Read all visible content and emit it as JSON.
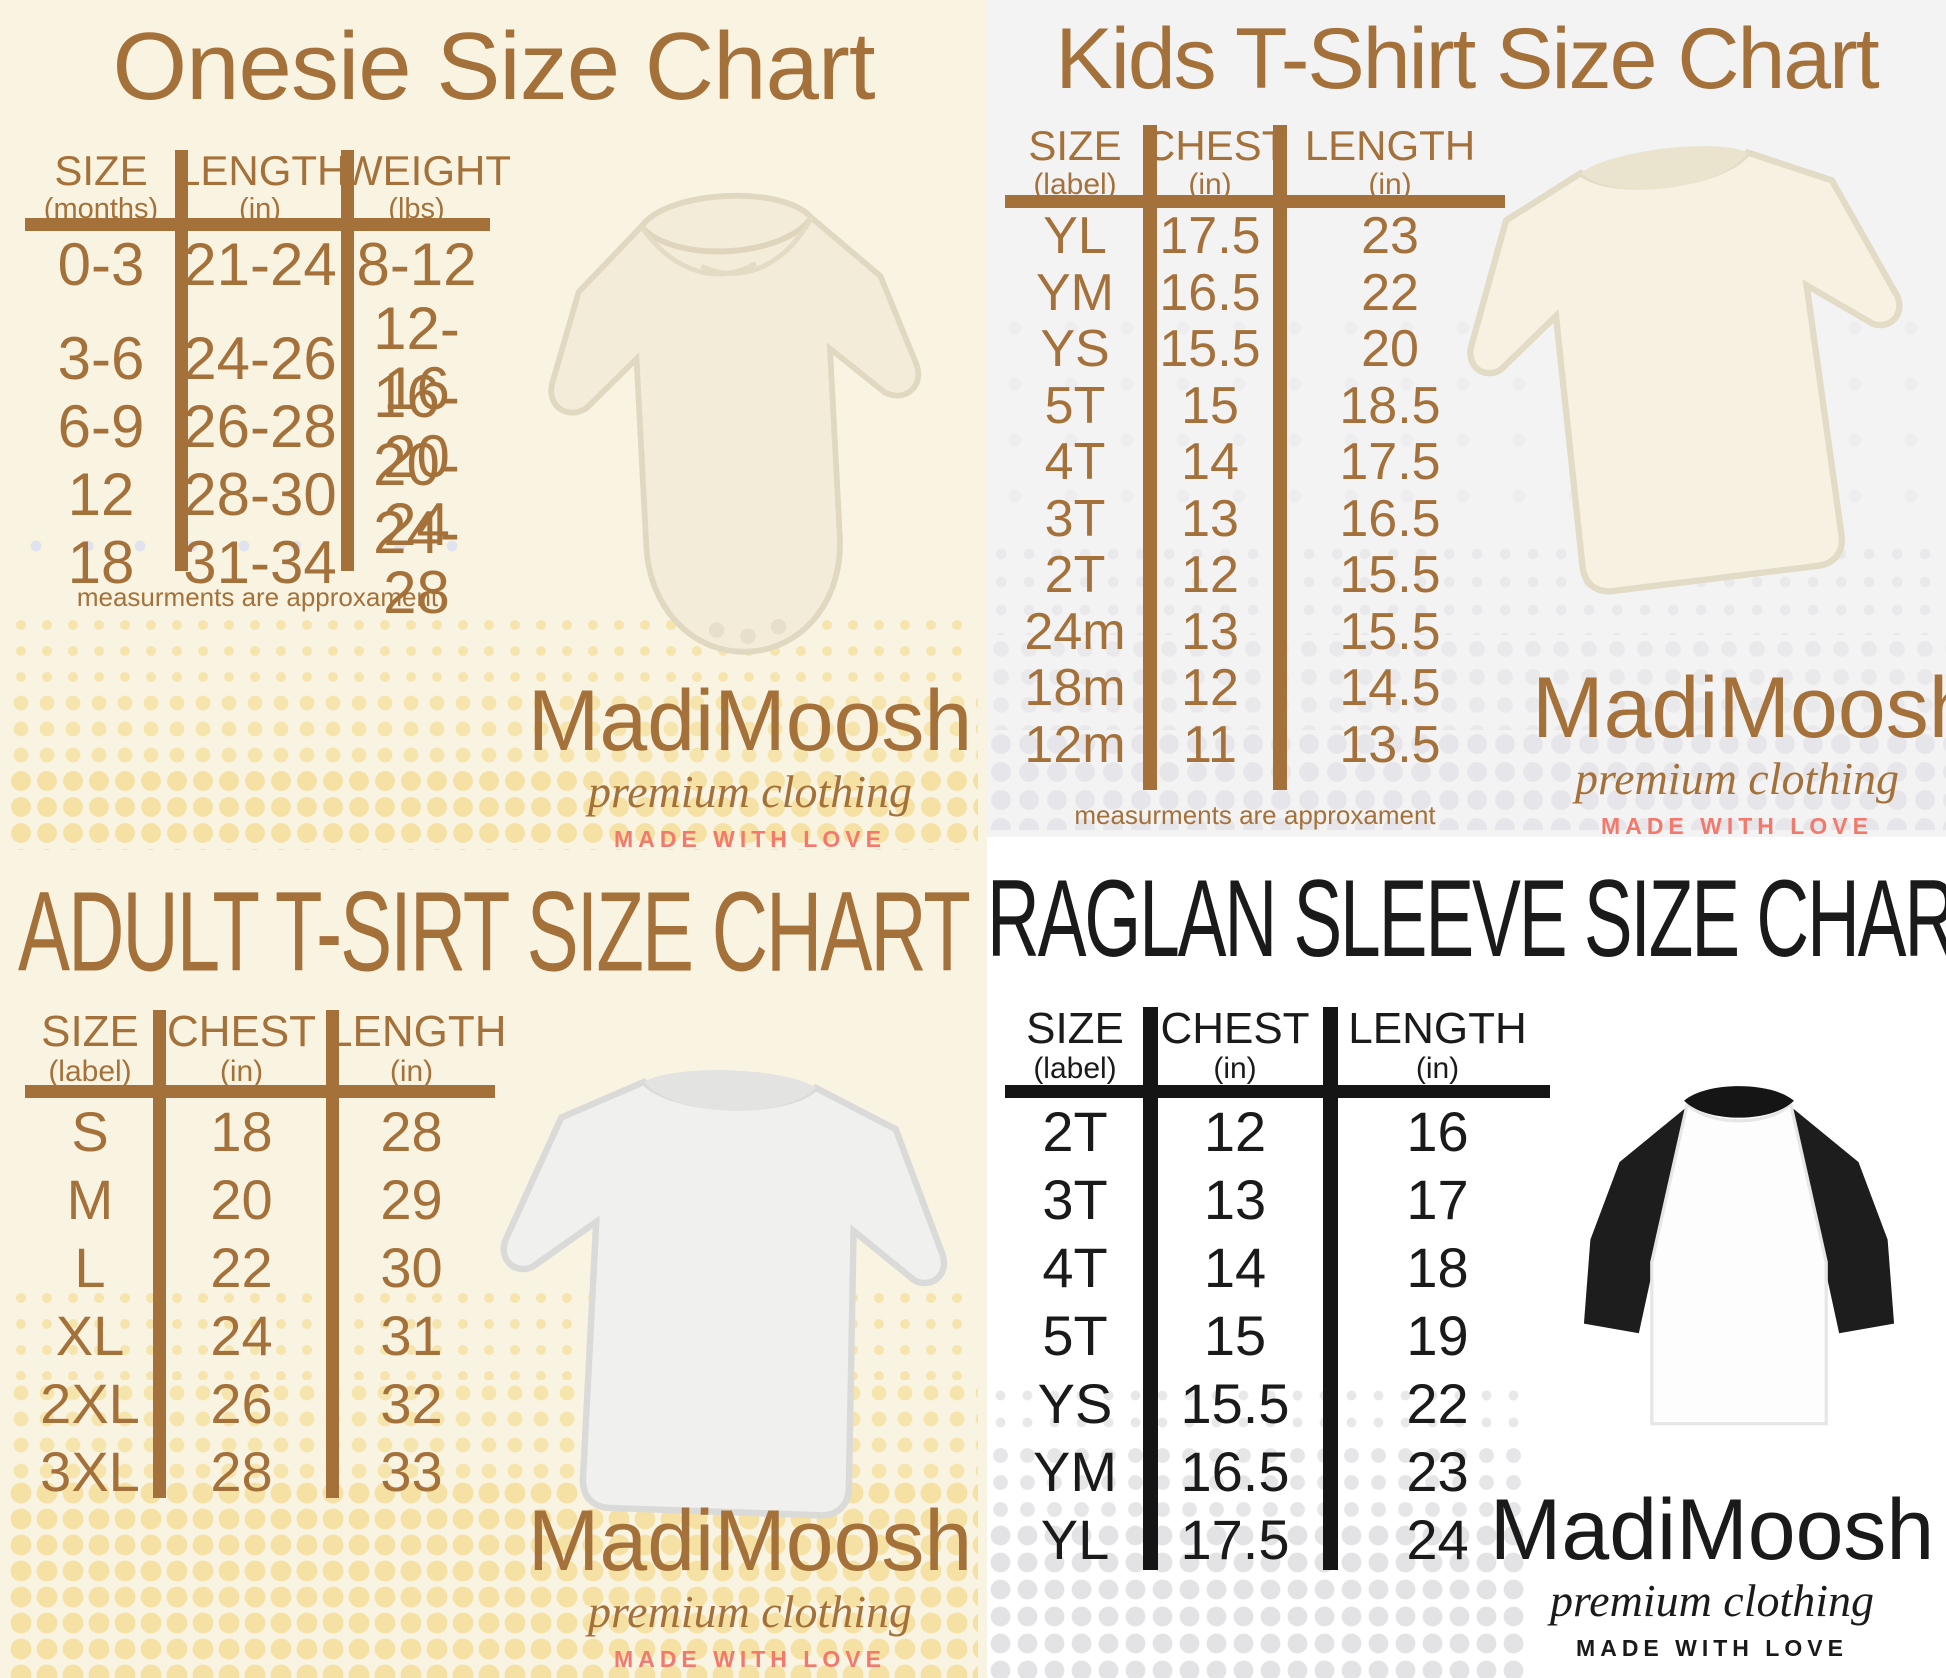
{
  "brand": {
    "name": "MadiMoosh",
    "tagline": "premium clothing",
    "made_with": "MADE WITH LOVE"
  },
  "colors": {
    "brown": "#a5713a",
    "salmon": "#f2796c",
    "black": "#1a1a1a",
    "cream_background": "#f9f4e2",
    "gray_background": "#f3f3f4",
    "white_background": "#ffffff"
  },
  "images": {
    "onesie": "cream-baby-onesie-photo",
    "kids_tshirt": "cream-kids-tshirt-photo",
    "adult_tshirt": "white-adult-tshirt-photo",
    "raglan": "black-and-white-raglan-shirt-photo"
  },
  "charts": [
    {
      "id": "onesie",
      "title": "Onesie Size Chart",
      "columns": [
        {
          "label": "SIZE",
          "unit": "(months)"
        },
        {
          "label": "LENGTH",
          "unit": "(in)"
        },
        {
          "label": "WEIGHT",
          "unit": "(lbs)"
        }
      ],
      "rows": [
        [
          "0-3",
          "21-24",
          "8-12"
        ],
        [
          "3-6",
          "24-26",
          "12-16"
        ],
        [
          "6-9",
          "26-28",
          "16-20"
        ],
        [
          "12",
          "28-30",
          "20-24"
        ],
        [
          "18",
          "31-34",
          "24-28"
        ]
      ],
      "note": "measurments are approxament"
    },
    {
      "id": "kids-tshirt",
      "title": "Kids T-Shirt Size Chart",
      "columns": [
        {
          "label": "SIZE",
          "unit": "(label)"
        },
        {
          "label": "CHEST",
          "unit": "(in)"
        },
        {
          "label": "LENGTH",
          "unit": "(in)"
        }
      ],
      "rows": [
        [
          "YL",
          "17.5",
          "23"
        ],
        [
          "YM",
          "16.5",
          "22"
        ],
        [
          "YS",
          "15.5",
          "20"
        ],
        [
          "5T",
          "15",
          "18.5"
        ],
        [
          "4T",
          "14",
          "17.5"
        ],
        [
          "3T",
          "13",
          "16.5"
        ],
        [
          "2T",
          "12",
          "15.5"
        ],
        [
          "24m",
          "13",
          "15.5"
        ],
        [
          "18m",
          "12",
          "14.5"
        ],
        [
          "12m",
          "11",
          "13.5"
        ]
      ],
      "note": "measurments are approxament"
    },
    {
      "id": "adult-tshirt",
      "title": "ADULT T-SIRT SIZE CHART",
      "columns": [
        {
          "label": "SIZE",
          "unit": "(label)"
        },
        {
          "label": "CHEST",
          "unit": "(in)"
        },
        {
          "label": "LENGTH",
          "unit": "(in)"
        }
      ],
      "rows": [
        [
          "S",
          "18",
          "28"
        ],
        [
          "M",
          "20",
          "29"
        ],
        [
          "L",
          "22",
          "30"
        ],
        [
          "XL",
          "24",
          "31"
        ],
        [
          "2XL",
          "26",
          "32"
        ],
        [
          "3XL",
          "28",
          "33"
        ]
      ]
    },
    {
      "id": "raglan",
      "title": "RAGLAN SLEEVE SIZE CHART",
      "columns": [
        {
          "label": "SIZE",
          "unit": "(label)"
        },
        {
          "label": "CHEST",
          "unit": "(in)"
        },
        {
          "label": "LENGTH",
          "unit": "(in)"
        }
      ],
      "rows": [
        [
          "2T",
          "12",
          "16"
        ],
        [
          "3T",
          "13",
          "17"
        ],
        [
          "4T",
          "14",
          "18"
        ],
        [
          "5T",
          "15",
          "19"
        ],
        [
          "YS",
          "15.5",
          "22"
        ],
        [
          "YM",
          "16.5",
          "23"
        ],
        [
          "YL",
          "17.5",
          "24"
        ]
      ]
    }
  ]
}
